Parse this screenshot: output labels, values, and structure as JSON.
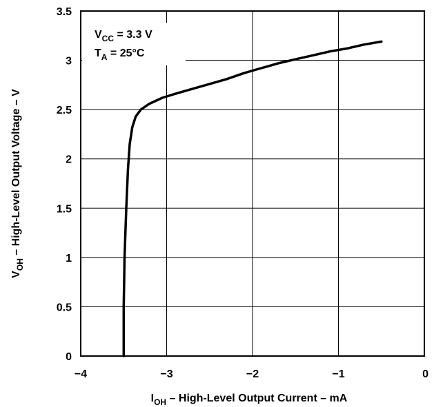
{
  "chart_data": {
    "type": "line",
    "xlabel": {
      "main": "I",
      "sub": "OH",
      "rest": " – High-Level Output Current – mA"
    },
    "ylabel": {
      "main": "V",
      "sub": "OH",
      "rest": " – High-Level Output Voltage – V"
    },
    "xlim": [
      -4,
      0
    ],
    "ylim": [
      0,
      3.5
    ],
    "x_ticks": [
      -4,
      -3,
      -2,
      -1,
      0
    ],
    "x_tick_labels": [
      "−4",
      "−3",
      "−2",
      "−1",
      "0"
    ],
    "y_ticks": [
      0,
      0.5,
      1,
      1.5,
      2,
      2.5,
      3,
      3.5
    ],
    "y_tick_labels": [
      "0",
      "0.5",
      "1",
      "1.5",
      "2",
      "2.5",
      "3",
      "3.5"
    ],
    "grid": true,
    "annotations": [
      {
        "main": "V",
        "sub": "CC",
        "rest": " = 3.3 V"
      },
      {
        "main": "T",
        "sub": "A",
        "rest": " = 25°C"
      }
    ],
    "series": [
      {
        "color": "#000000",
        "x": [
          -3.5,
          -3.5,
          -3.49,
          -3.47,
          -3.45,
          -3.43,
          -3.4,
          -3.36,
          -3.3,
          -3.2,
          -3.05,
          -2.9,
          -2.7,
          -2.5,
          -2.3,
          -2.1,
          -1.9,
          -1.7,
          -1.5,
          -1.3,
          -1.1,
          -0.9,
          -0.7,
          -0.5
        ],
        "y": [
          0,
          0.5,
          1.0,
          1.5,
          1.9,
          2.15,
          2.32,
          2.43,
          2.5,
          2.56,
          2.62,
          2.66,
          2.71,
          2.76,
          2.81,
          2.87,
          2.92,
          2.97,
          3.01,
          3.05,
          3.09,
          3.12,
          3.16,
          3.19
        ]
      }
    ]
  }
}
